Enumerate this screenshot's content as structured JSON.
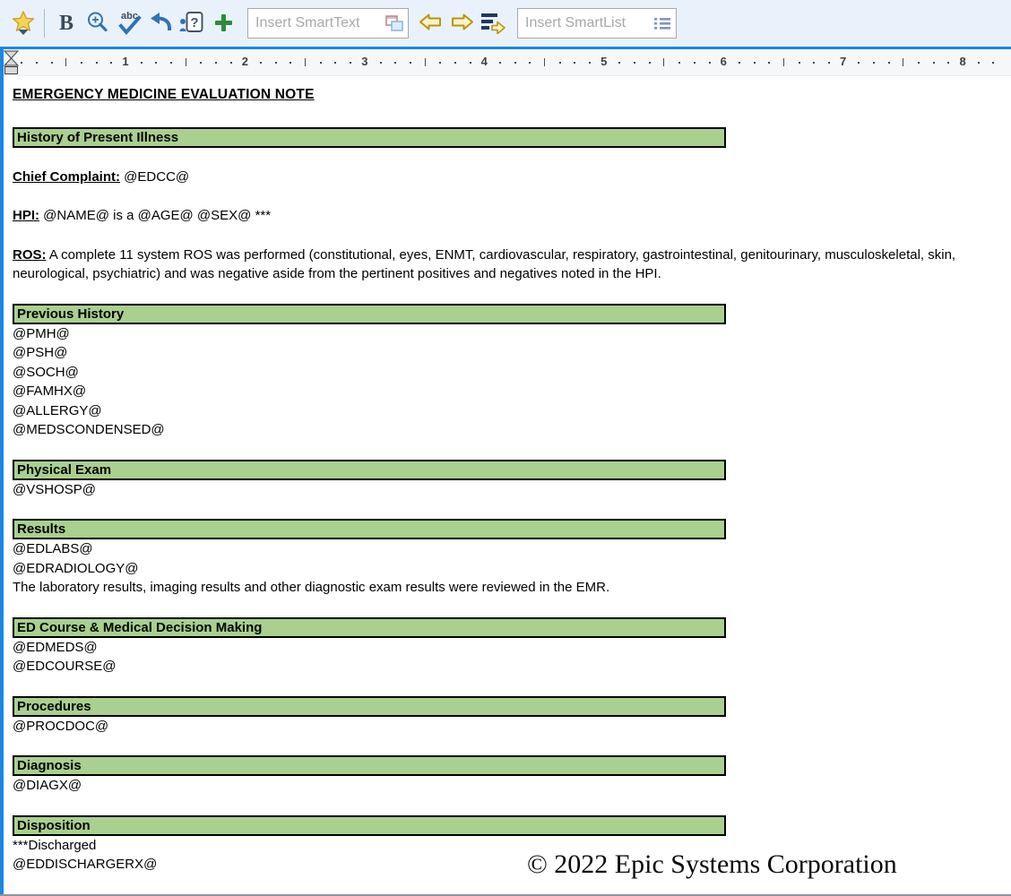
{
  "toolbar": {
    "bold_label": "B",
    "spellcheck_label": "abc",
    "wildcard_label": "?",
    "smarttext": {
      "placeholder": "Insert SmartText"
    },
    "smartlist": {
      "placeholder": "Insert SmartList"
    }
  },
  "ruler": {
    "inch_labels": [
      "1",
      "2",
      "3",
      "4",
      "5",
      "6",
      "7",
      "8"
    ]
  },
  "document": {
    "title": "EMERGENCY MEDICINE EVALUATION NOTE",
    "sections": [
      {
        "header": "History of Present Illness",
        "lines": [
          {
            "label": "Chief Complaint:",
            "text": "@EDCC@",
            "gap_before": true
          },
          {
            "label": "HPI:",
            "text": "@NAME@ is a @AGE@ @SEX@ ***",
            "gap_before": true
          },
          {
            "label": "ROS:",
            "text": "A complete 11 system ROS was performed (constitutional, eyes, ENMT, cardiovascular, respiratory, gastrointestinal, genitourinary, musculoskeletal, skin, neurological, psychiatric) and was negative aside from the pertinent positives and negatives noted in the HPI.",
            "gap_before": true
          }
        ]
      },
      {
        "header": "Previous History",
        "lines": [
          {
            "text": "@PMH@"
          },
          {
            "text": "@PSH@"
          },
          {
            "text": "@SOCH@"
          },
          {
            "text": "@FAMHX@"
          },
          {
            "text": "@ALLERGY@"
          },
          {
            "text": "@MEDSCONDENSED@"
          }
        ]
      },
      {
        "header": "Physical Exam",
        "lines": [
          {
            "text": "@VSHOSP@"
          }
        ]
      },
      {
        "header": "Results",
        "lines": [
          {
            "text": "@EDLABS@"
          },
          {
            "text": "@EDRADIOLOGY@"
          },
          {
            "text": "The laboratory results, imaging results and other diagnostic exam results were reviewed in the EMR."
          }
        ]
      },
      {
        "header": "ED Course & Medical Decision Making",
        "lines": [
          {
            "text": "@EDMEDS@"
          },
          {
            "text": "@EDCOURSE@"
          }
        ]
      },
      {
        "header": "Procedures",
        "lines": [
          {
            "text": "@PROCDOC@"
          }
        ]
      },
      {
        "header": "Diagnosis",
        "lines": [
          {
            "text": "@DIAGX@"
          }
        ]
      },
      {
        "header": "Disposition",
        "lines": [
          {
            "text": "***Discharged"
          },
          {
            "text": "@EDDISCHARGERX@"
          }
        ]
      }
    ],
    "watermark": "© 2022 Epic Systems Corporation"
  },
  "colors": {
    "section_header_bg": "#A9D08E",
    "toolbar_bg": "#E9F2FA",
    "frame_blue": "#1B87E5",
    "icon_blue": "#2E74B5",
    "icon_dark": "#3A4A5E",
    "plus_green": "#2F8A3C",
    "arrow_gold": "#B8960C",
    "arrow_gold_fill": "#FBF3CE"
  }
}
